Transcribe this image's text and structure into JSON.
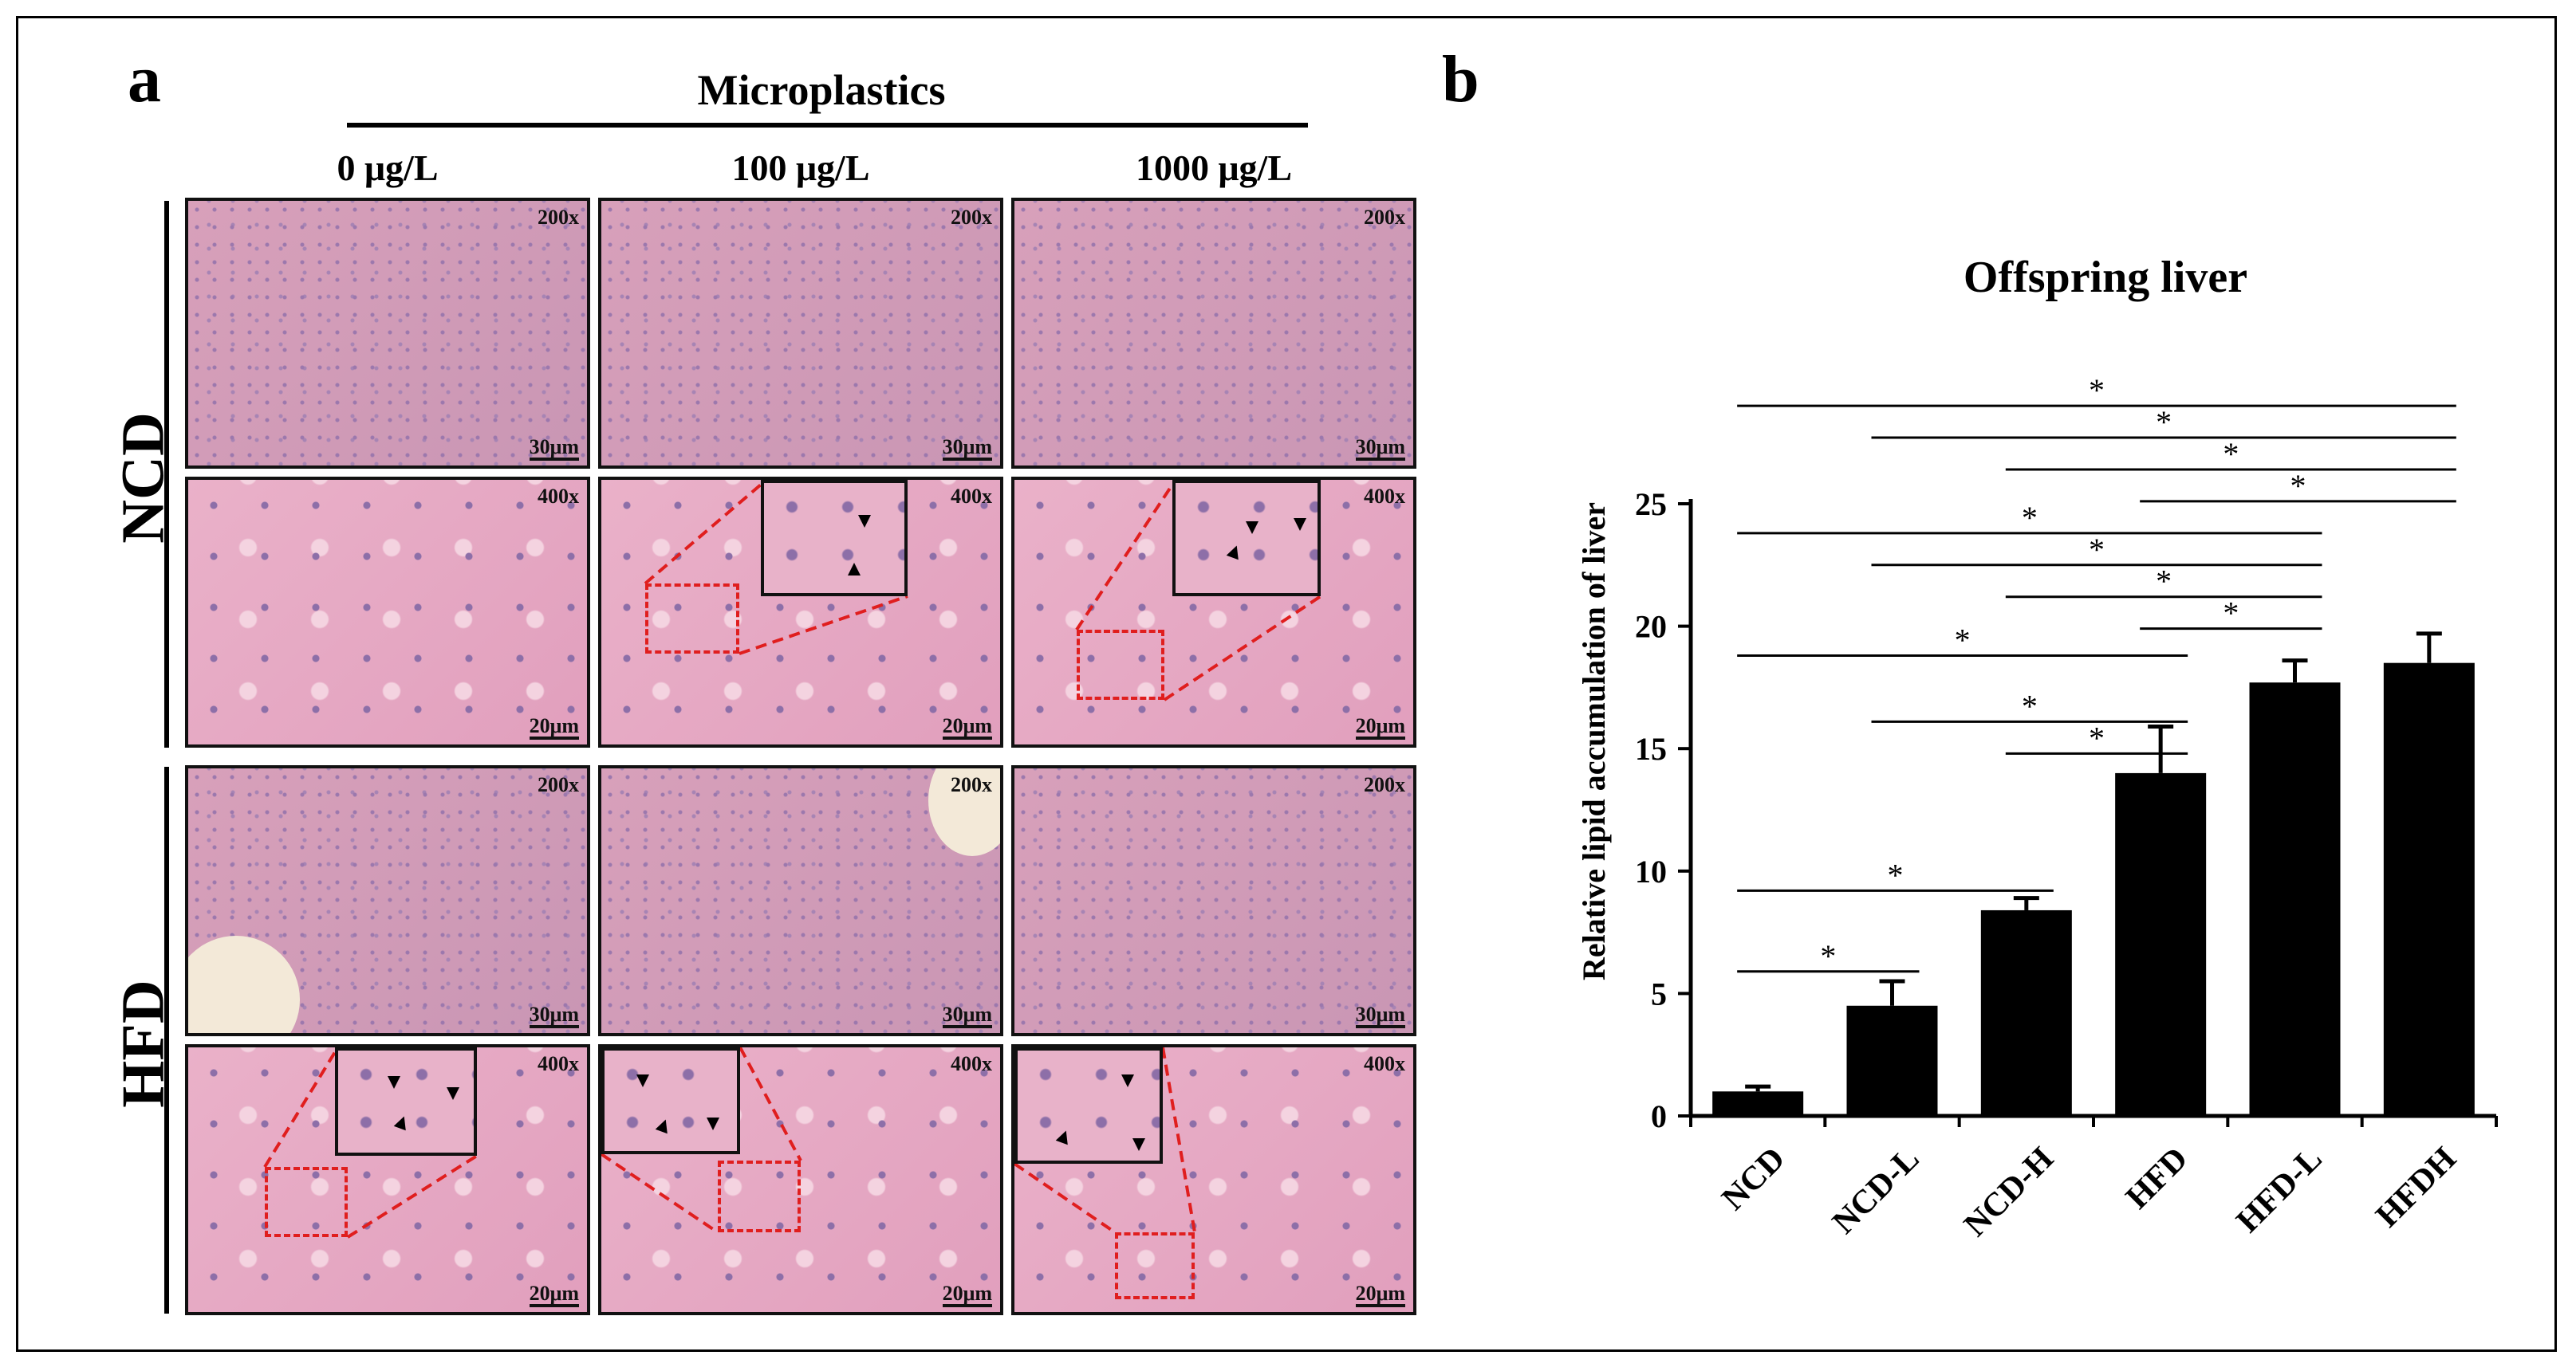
{
  "panel_a": {
    "letter": "a",
    "treatment_title": "Microplastics",
    "columns": [
      "0 μg/L",
      "100 μg/L",
      "1000 μg/L"
    ],
    "rows": [
      "NCD",
      "HFD"
    ],
    "magnifications": {
      "low": "200x",
      "high": "400x"
    },
    "scale_bars": {
      "low": "30μm",
      "high": "20μm"
    }
  },
  "panel_b": {
    "letter": "b"
  },
  "chart_data": {
    "type": "bar",
    "title": "Offspring liver",
    "xlabel": "",
    "ylabel": "Relative lipid accumulation of liver",
    "categories": [
      "NCD",
      "NCD-L",
      "NCD-H",
      "HFD",
      "HFD-L",
      "HFDH"
    ],
    "values": [
      1.0,
      4.5,
      8.4,
      14.0,
      17.7,
      18.5
    ],
    "errors": [
      0.2,
      1.0,
      0.5,
      1.9,
      0.9,
      1.2
    ],
    "ylim": [
      0,
      25
    ],
    "yticks": [
      0,
      5,
      10,
      15,
      20,
      25
    ],
    "colors": {
      "bars": "#000000"
    },
    "significance": [
      {
        "from": "NCD",
        "to": "NCD-L",
        "label": "*"
      },
      {
        "from": "NCD",
        "to": "NCD-H",
        "label": "*"
      },
      {
        "from": "NCD-H",
        "to": "HFD",
        "label": "*"
      },
      {
        "from": "NCD-L",
        "to": "HFD",
        "label": "*"
      },
      {
        "from": "NCD",
        "to": "HFD",
        "label": "*"
      },
      {
        "from": "HFD",
        "to": "HFD-L",
        "label": "*"
      },
      {
        "from": "NCD-H",
        "to": "HFD-L",
        "label": "*"
      },
      {
        "from": "NCD-L",
        "to": "HFD-L",
        "label": "*"
      },
      {
        "from": "NCD",
        "to": "HFD-L",
        "label": "*"
      },
      {
        "from": "HFD",
        "to": "HFDH",
        "label": "*"
      },
      {
        "from": "NCD-H",
        "to": "HFDH",
        "label": "*"
      },
      {
        "from": "NCD-L",
        "to": "HFDH",
        "label": "*"
      },
      {
        "from": "NCD",
        "to": "HFDH",
        "label": "*"
      }
    ]
  }
}
